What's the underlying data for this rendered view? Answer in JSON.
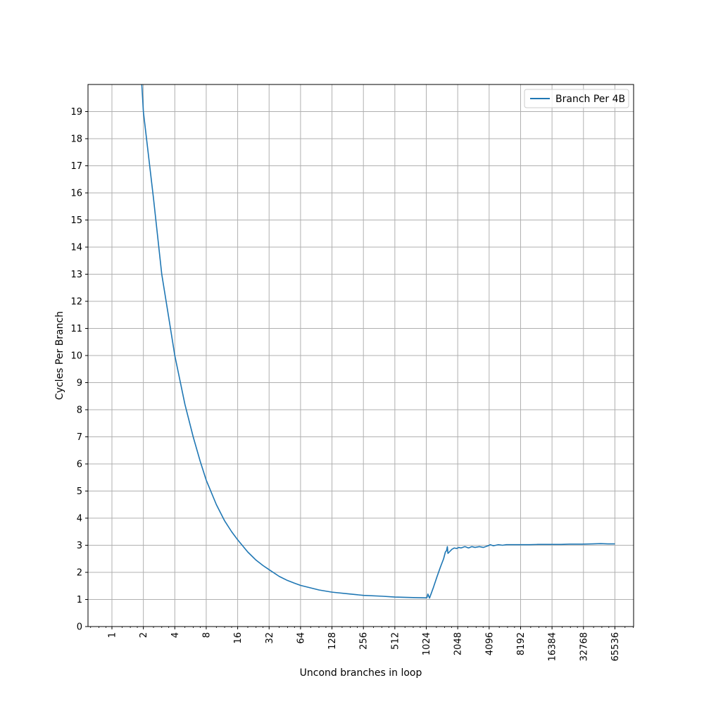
{
  "chart_data": {
    "type": "line",
    "title": "",
    "xlabel": "Uncond branches in loop",
    "ylabel": "Cycles Per Branch",
    "x_scale": "log2",
    "xlim": [
      0.59,
      99000
    ],
    "ylim": [
      0,
      20
    ],
    "x_ticks": [
      1,
      2,
      4,
      8,
      16,
      32,
      64,
      128,
      256,
      512,
      1024,
      2048,
      4096,
      8192,
      16384,
      32768,
      65536
    ],
    "x_tick_labels": [
      "1",
      "2",
      "4",
      "8",
      "16",
      "32",
      "64",
      "128",
      "256",
      "512",
      "1024",
      "2048",
      "4096",
      "8192",
      "16384",
      "32768",
      "65536"
    ],
    "y_ticks": [
      0,
      1,
      2,
      3,
      4,
      5,
      6,
      7,
      8,
      9,
      10,
      11,
      12,
      13,
      14,
      15,
      16,
      17,
      18,
      19
    ],
    "y_tick_labels": [
      "0",
      "1",
      "2",
      "3",
      "4",
      "5",
      "6",
      "7",
      "8",
      "9",
      "10",
      "11",
      "12",
      "13",
      "14",
      "15",
      "16",
      "17",
      "18",
      "19"
    ],
    "grid": true,
    "legend_position": "top-right",
    "series": [
      {
        "name": "Branch Per 4B",
        "color": "#1f77b4",
        "x": [
          1.9,
          2,
          2.5,
          3,
          3.5,
          4,
          5,
          6,
          7,
          8,
          10,
          12,
          14,
          16,
          20,
          24,
          28,
          32,
          40,
          48,
          56,
          64,
          96,
          128,
          192,
          256,
          384,
          512,
          768,
          1000,
          1024,
          1040,
          1060,
          1100,
          1200,
          1300,
          1400,
          1500,
          1560,
          1600,
          1630,
          1650,
          1700,
          1800,
          1900,
          2000,
          2100,
          2200,
          2400,
          2600,
          2800,
          3000,
          3300,
          3600,
          4000,
          4200,
          4500,
          5000,
          5500,
          6000,
          7000,
          8000,
          10000,
          12000,
          16000,
          20000,
          24000,
          32000,
          40000,
          48000,
          56000,
          65536
        ],
        "y": [
          20.5,
          19.0,
          15.8,
          13.0,
          11.4,
          10.0,
          8.2,
          7.0,
          6.1,
          5.4,
          4.5,
          3.9,
          3.5,
          3.2,
          2.75,
          2.45,
          2.25,
          2.1,
          1.85,
          1.7,
          1.6,
          1.52,
          1.35,
          1.27,
          1.2,
          1.15,
          1.12,
          1.09,
          1.07,
          1.06,
          1.06,
          1.07,
          1.2,
          1.05,
          1.45,
          1.85,
          2.2,
          2.5,
          2.75,
          2.8,
          2.95,
          2.7,
          2.75,
          2.85,
          2.9,
          2.88,
          2.92,
          2.9,
          2.95,
          2.9,
          2.95,
          2.92,
          2.95,
          2.92,
          2.98,
          3.02,
          2.98,
          3.02,
          3.0,
          3.02,
          3.02,
          3.02,
          3.02,
          3.03,
          3.03,
          3.03,
          3.04,
          3.04,
          3.05,
          3.06,
          3.05,
          3.05
        ]
      }
    ]
  }
}
